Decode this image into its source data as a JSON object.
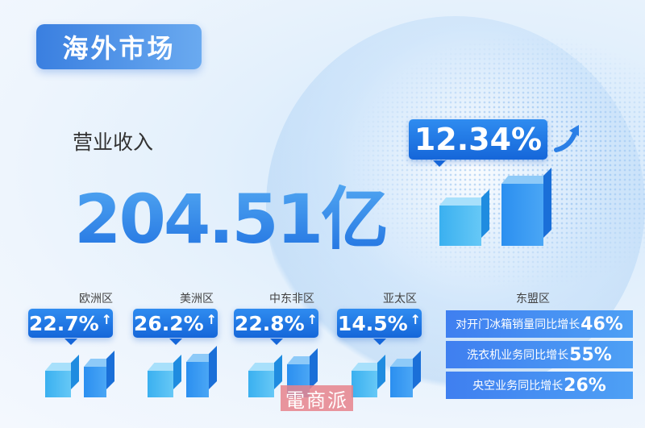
{
  "title": "海外市场",
  "revenue": {
    "label": "营业收入",
    "value": "204.51亿",
    "growth": "12.34%",
    "growth_icon": "trend-up-arrow-icon"
  },
  "regions": [
    {
      "name": "欧洲区",
      "growth": "22.7%",
      "arrow": "↑"
    },
    {
      "name": "美洲区",
      "growth": "26.2%",
      "arrow": "↑"
    },
    {
      "name": "中东非区",
      "growth": "22.8%",
      "arrow": "↑"
    },
    {
      "name": "亚太区",
      "growth": "14.5%",
      "arrow": "↑"
    }
  ],
  "asean": {
    "name": "东盟区",
    "items": [
      {
        "text": "对开门冰箱销量同比增长",
        "value": "46%"
      },
      {
        "text": "洗衣机业务同比增长",
        "value": "55%"
      },
      {
        "text": "央空业务同比增长",
        "value": "26%"
      }
    ]
  },
  "watermark": "電商派",
  "colors": {
    "accent": "#1e6fe0",
    "badge": "#2f8cf0",
    "watermark": "#e6828c"
  }
}
